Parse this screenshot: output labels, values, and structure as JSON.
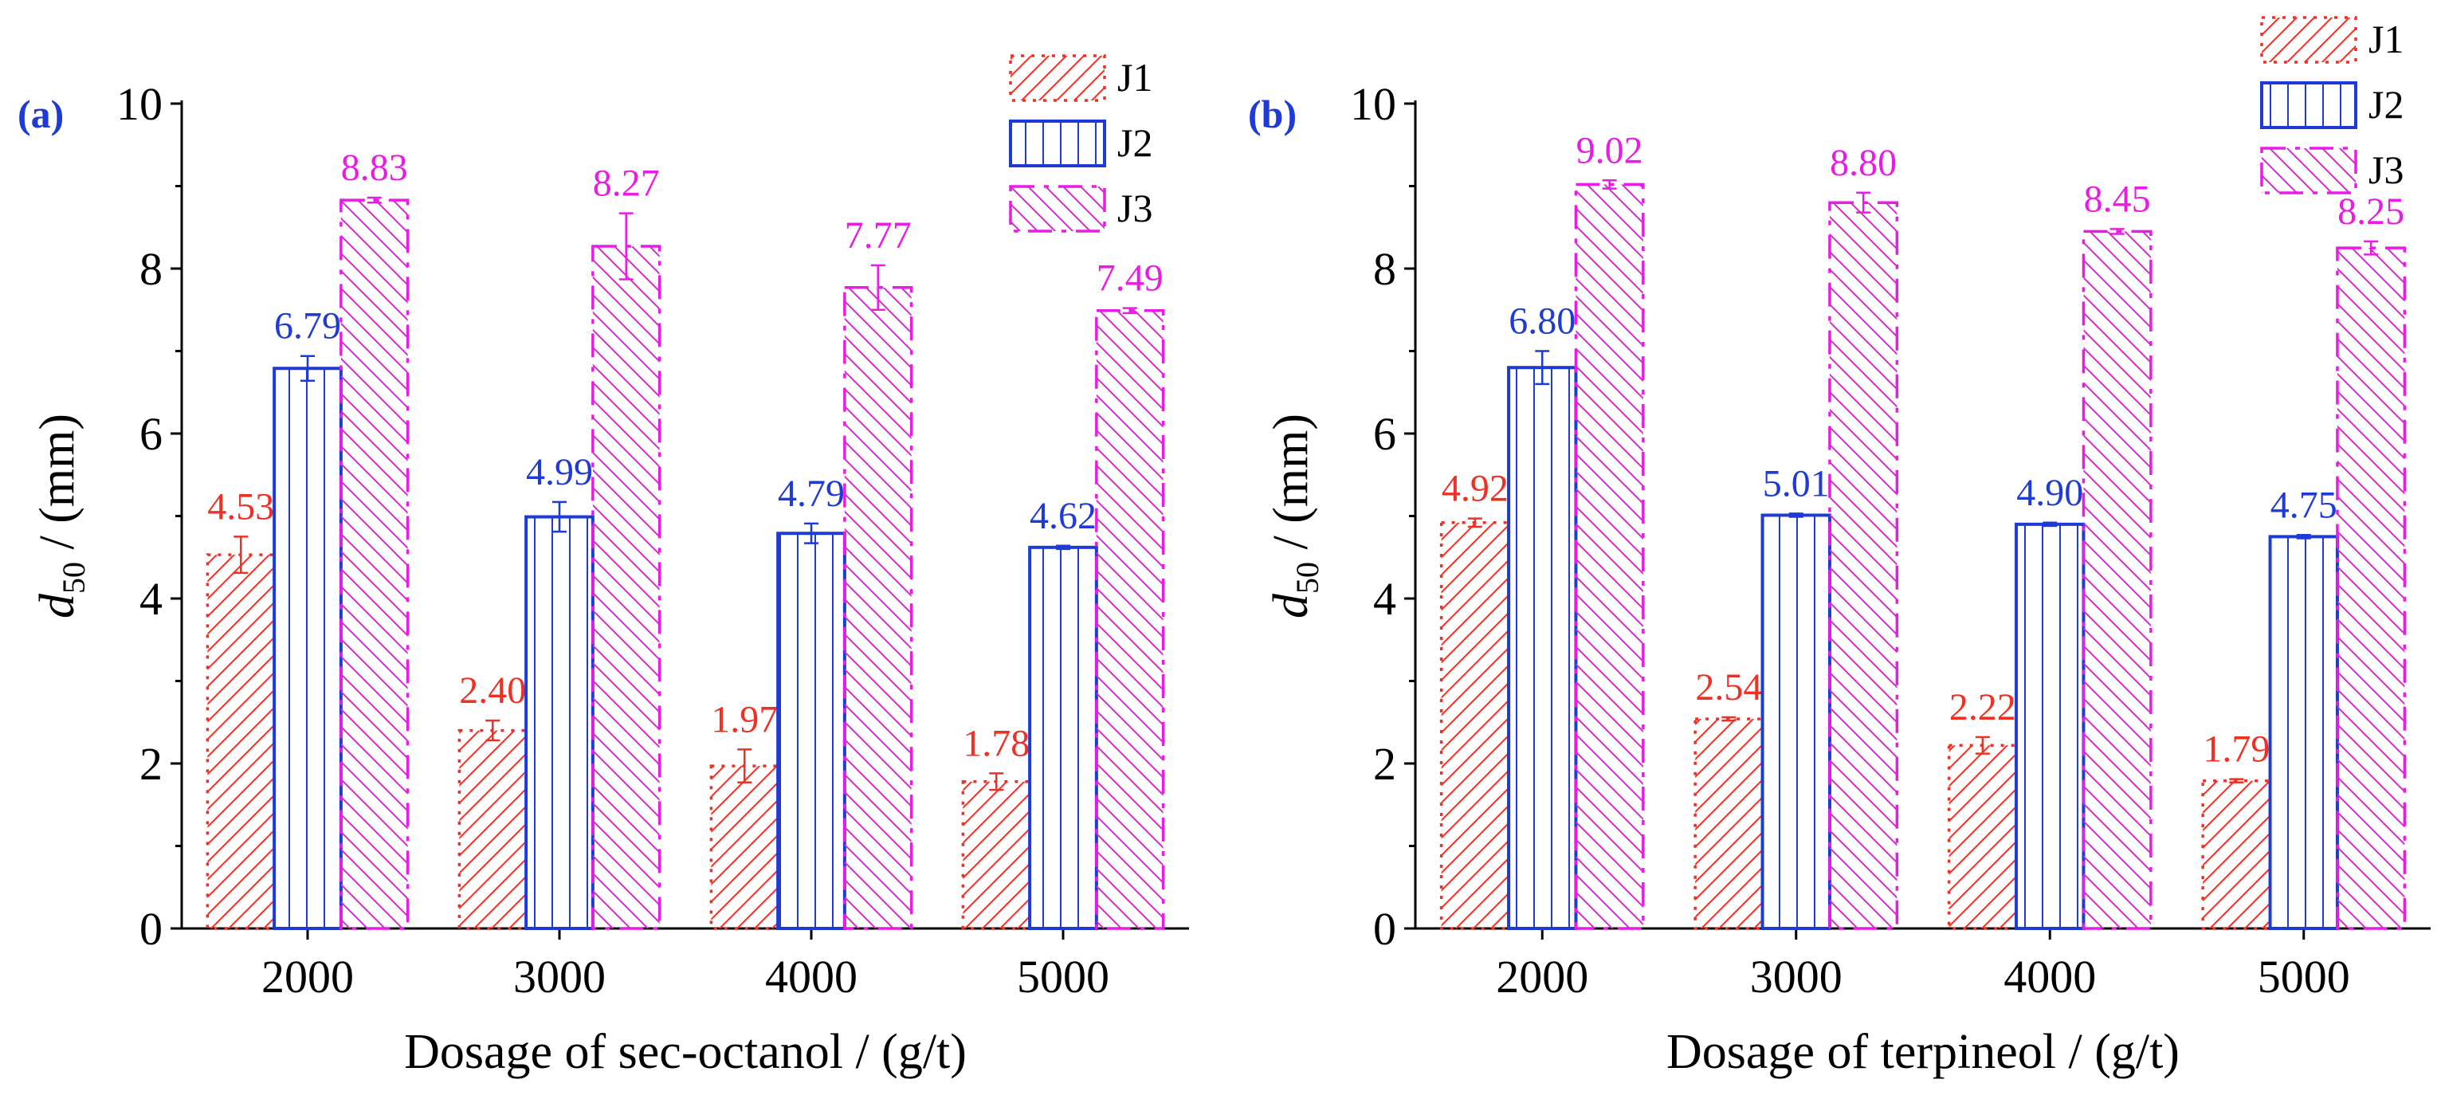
{
  "figure": {
    "series_styles": [
      {
        "name": "J1",
        "color": "#ee3124",
        "line": "dotted",
        "hatch": "forward-diagonal"
      },
      {
        "name": "J2",
        "color": "#1f3bd6",
        "line": "solid",
        "hatch": "vertical"
      },
      {
        "name": "J3",
        "color": "#e81ce3",
        "line": "dash-dot",
        "hatch": "backward-diagonal"
      }
    ]
  },
  "chart_data": [
    {
      "type": "bar",
      "panel_label": "(a)",
      "title": "",
      "xlabel": "Dosage of sec-octanol / (g/t)",
      "ylabel_main": "d",
      "ylabel_sub": "50",
      "ylabel_unit": " / (mm)",
      "ylim": [
        0,
        10
      ],
      "yticks": [
        0,
        2,
        4,
        6,
        8,
        10
      ],
      "grid": false,
      "legend_position": "top-right",
      "categories": [
        "2000",
        "3000",
        "4000",
        "5000"
      ],
      "series": [
        {
          "name": "J1",
          "values": [
            4.53,
            2.4,
            1.97,
            1.78
          ],
          "labels": [
            "4.53",
            "2.40",
            "1.97",
            "1.78"
          ],
          "errors": [
            0.22,
            0.12,
            0.2,
            0.1
          ]
        },
        {
          "name": "J2",
          "values": [
            6.79,
            4.99,
            4.79,
            4.62
          ],
          "labels": [
            "6.79",
            "4.99",
            "4.79",
            "4.62"
          ],
          "errors": [
            0.15,
            0.18,
            0.12,
            0.02
          ]
        },
        {
          "name": "J3",
          "values": [
            8.83,
            8.27,
            7.77,
            7.49
          ],
          "labels": [
            "8.83",
            "8.27",
            "7.77",
            "7.49"
          ],
          "errors": [
            0.03,
            0.4,
            0.27,
            0.03
          ]
        }
      ]
    },
    {
      "type": "bar",
      "panel_label": "(b)",
      "title": "",
      "xlabel": "Dosage of terpineol / (g/t)",
      "ylabel_main": "d",
      "ylabel_sub": "50",
      "ylabel_unit": " / (mm)",
      "ylim": [
        0,
        10
      ],
      "yticks": [
        0,
        2,
        4,
        6,
        8,
        10
      ],
      "grid": false,
      "legend_position": "top-right",
      "categories": [
        "2000",
        "3000",
        "4000",
        "5000"
      ],
      "series": [
        {
          "name": "J1",
          "values": [
            4.92,
            2.54,
            2.22,
            1.79
          ],
          "labels": [
            "4.92",
            "2.54",
            "2.22",
            "1.79"
          ],
          "errors": [
            0.05,
            0.02,
            0.1,
            0.02
          ]
        },
        {
          "name": "J2",
          "values": [
            6.8,
            5.01,
            4.9,
            4.75
          ],
          "labels": [
            "6.80",
            "5.01",
            "4.90",
            "4.75"
          ],
          "errors": [
            0.2,
            0.02,
            0.02,
            0.02
          ]
        },
        {
          "name": "J3",
          "values": [
            9.02,
            8.8,
            8.45,
            8.25
          ],
          "labels": [
            "9.02",
            "8.80",
            "8.45",
            "8.25"
          ],
          "errors": [
            0.05,
            0.12,
            0.03,
            0.08
          ]
        }
      ]
    }
  ]
}
